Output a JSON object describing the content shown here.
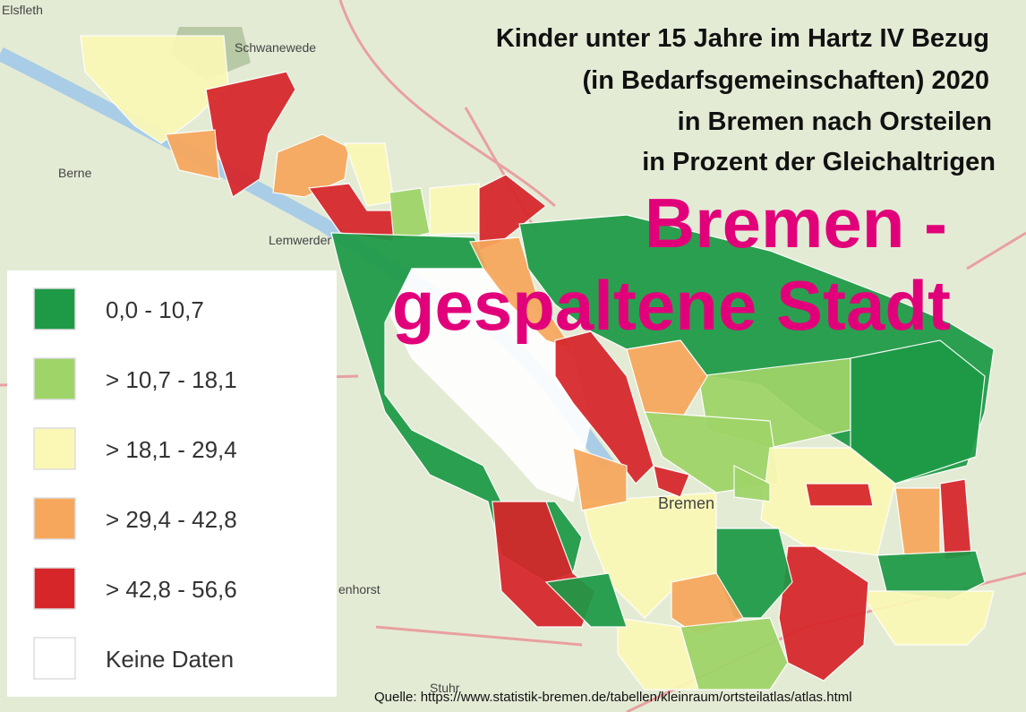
{
  "title": [
    "Kinder unter 15 Jahre im Hartz IV Bezug",
    "(in Bedarfsgemeinschaften) 2020",
    "in Bremen nach Orsteilen",
    "in Prozent der Gleichaltrigen"
  ],
  "headline": [
    "Bremen -",
    "gespaltene Stadt"
  ],
  "legend": {
    "items": [
      {
        "label": "0,0 - 10,7",
        "color": "#1e9a47"
      },
      {
        "label": "> 10,7 - 18,1",
        "color": "#9fd468"
      },
      {
        "label": "> 18,1 - 29,4",
        "color": "#fbf8b6"
      },
      {
        "label": "> 29,4 - 42,8",
        "color": "#f7a75c"
      },
      {
        "label": "> 42,8 - 56,6",
        "color": "#d7262a"
      },
      {
        "label": "Keine Daten",
        "color": "#ffffff"
      }
    ]
  },
  "map_labels": [
    "Elsfleth",
    "Schwanewede",
    "Berne",
    "Lemwerder",
    "Bremen",
    "Stuhr",
    "enhorst"
  ],
  "source": "Quelle: https://www.statistik-bremen.de/tabellen/kleinraum/ortsteilatlas/atlas.html"
}
